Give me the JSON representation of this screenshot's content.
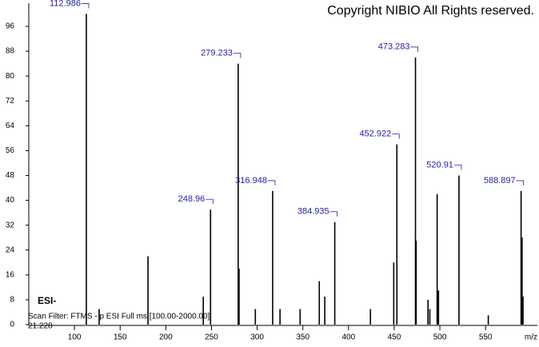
{
  "chart_data": {
    "type": "bar",
    "title": "Copyright NIBIO All Rights reserved.",
    "ionization": "ESI-",
    "scan_filter": "Scan Filter: FTMS - p ESI Full ms [100.00-2000.00]",
    "retention_time": "21.228",
    "x_label": "m/z",
    "x": [
      112.986,
      248.96,
      279.233,
      316.948,
      384.935,
      452.922,
      473.283,
      520.91,
      588.897
    ],
    "values": [
      100,
      37,
      84,
      43,
      33,
      58,
      86,
      48,
      43
    ],
    "minor": {
      "x": [
        127,
        180.5,
        241,
        280.2,
        298,
        325,
        347,
        368,
        374,
        424,
        449.5,
        474,
        487,
        489,
        497,
        498.5,
        553,
        590,
        591
      ],
      "values": [
        5,
        22,
        9,
        18,
        5,
        5,
        5,
        14,
        9,
        5,
        20,
        27,
        8,
        5,
        42,
        11,
        3,
        28,
        9
      ]
    },
    "color": "#000000",
    "label_color": "#2424a0",
    "xlim": [
      50,
      605
    ],
    "xticks": [
      100,
      150,
      200,
      250,
      300,
      350,
      400,
      450,
      500,
      550
    ],
    "ylim": [
      0,
      103.2
    ],
    "yticks": [
      0,
      8,
      16,
      24,
      32,
      40,
      48,
      56,
      64,
      72,
      80,
      88,
      96
    ]
  }
}
